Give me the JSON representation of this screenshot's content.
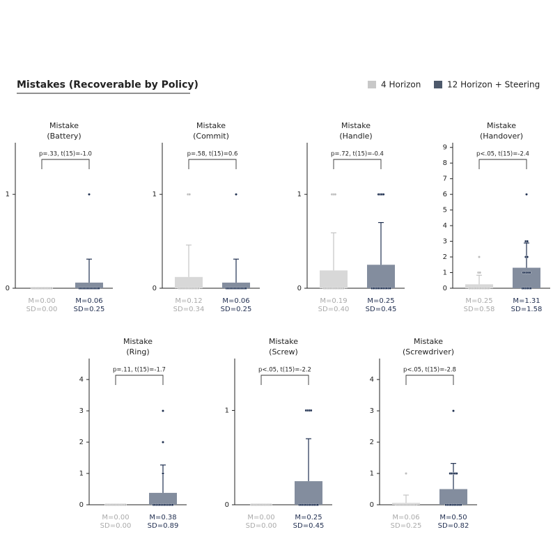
{
  "title": "Mistakes (Recoverable by Policy)",
  "legend": [
    {
      "name": "4 Horizon",
      "color": "#c8c8c8"
    },
    {
      "name": "12 Horizon + Steering",
      "color": "#4d596b"
    }
  ],
  "chart_data": [
    {
      "type": "bar",
      "title": "Mistake",
      "subtitle": "(Battery)",
      "annotation": "p=.33, t(15)=-1.0",
      "values": [
        0,
        0.06
      ],
      "errors": [
        0,
        0.25
      ],
      "value_labels": [
        "M=0.00",
        "M=0.06"
      ],
      "error_labels": [
        "SD=0.00",
        "SD=0.25"
      ],
      "points": [
        [
          0,
          0,
          0,
          0,
          0,
          0,
          0,
          0,
          0,
          0,
          0,
          0,
          0,
          0,
          0,
          0
        ],
        [
          1,
          0,
          0,
          0,
          0,
          0,
          0,
          0,
          0,
          0,
          0,
          0,
          0,
          0,
          0,
          0
        ]
      ],
      "ylim": [
        0,
        1.55
      ],
      "yticks": [
        0,
        1
      ]
    },
    {
      "type": "bar",
      "title": "Mistake",
      "subtitle": "(Commit)",
      "annotation": "p=.58, t(15)=0.6",
      "values": [
        0.12,
        0.06
      ],
      "errors": [
        0.34,
        0.25
      ],
      "value_labels": [
        "M=0.12",
        "M=0.06"
      ],
      "error_labels": [
        "SD=0.34",
        "SD=0.25"
      ],
      "points": [
        [
          1,
          1,
          0,
          0,
          0,
          0,
          0,
          0,
          0,
          0,
          0,
          0,
          0,
          0,
          0,
          0
        ],
        [
          1,
          0,
          0,
          0,
          0,
          0,
          0,
          0,
          0,
          0,
          0,
          0,
          0,
          0,
          0,
          0
        ]
      ],
      "ylim": [
        0,
        1.55
      ],
      "yticks": [
        0,
        1
      ]
    },
    {
      "type": "bar",
      "title": "Mistake",
      "subtitle": "(Handle)",
      "annotation": "p=.72, t(15)=-0.4",
      "values": [
        0.19,
        0.25
      ],
      "errors": [
        0.4,
        0.45
      ],
      "value_labels": [
        "M=0.19",
        "M=0.25"
      ],
      "error_labels": [
        "SD=0.40",
        "SD=0.45"
      ],
      "points": [
        [
          1,
          1,
          1,
          0,
          0,
          0,
          0,
          0,
          0,
          0,
          0,
          0,
          0,
          0,
          0,
          0
        ],
        [
          1,
          1,
          1,
          1,
          0,
          0,
          0,
          0,
          0,
          0,
          0,
          0,
          0,
          0,
          0,
          0
        ]
      ],
      "ylim": [
        0,
        1.55
      ],
      "yticks": [
        0,
        1
      ]
    },
    {
      "type": "bar",
      "title": "Mistake",
      "subtitle": "(Handover)",
      "annotation": "p<.05, t(15)=-2.4",
      "values": [
        0.25,
        1.31
      ],
      "errors": [
        0.58,
        1.58
      ],
      "value_labels": [
        "M=0.25",
        "M=1.31"
      ],
      "error_labels": [
        "SD=0.58",
        "SD=1.58"
      ],
      "points": [
        [
          2,
          1,
          1,
          0,
          0,
          0,
          0,
          0,
          0,
          0,
          0,
          0,
          0,
          0,
          0,
          0
        ],
        [
          6,
          3,
          3,
          2,
          2,
          1,
          1,
          1,
          1,
          1,
          0,
          0,
          0,
          0,
          0,
          0
        ]
      ],
      "ylim": [
        0,
        9.3
      ],
      "yticks": [
        0,
        1,
        2,
        3,
        4,
        5,
        6,
        7,
        8,
        9
      ]
    },
    {
      "type": "bar",
      "title": "Mistake",
      "subtitle": "(Ring)",
      "annotation": "p=.11, t(15)=-1.7",
      "values": [
        0,
        0.38
      ],
      "errors": [
        0,
        0.89
      ],
      "value_labels": [
        "M=0.00",
        "M=0.38"
      ],
      "error_labels": [
        "SD=0.00",
        "SD=0.89"
      ],
      "points": [
        [
          0,
          0,
          0,
          0,
          0,
          0,
          0,
          0,
          0,
          0,
          0,
          0,
          0,
          0,
          0,
          0
        ],
        [
          3,
          2,
          1,
          0,
          0,
          0,
          0,
          0,
          0,
          0,
          0,
          0,
          0,
          0,
          0,
          0
        ]
      ],
      "ylim": [
        0,
        4.67
      ],
      "yticks": [
        0,
        1,
        2,
        3,
        4
      ]
    },
    {
      "type": "bar",
      "title": "Mistake",
      "subtitle": "(Screw)",
      "annotation": "p<.05, t(15)=-2.2",
      "values": [
        0,
        0.25
      ],
      "errors": [
        0,
        0.45
      ],
      "value_labels": [
        "M=0.00",
        "M=0.25"
      ],
      "error_labels": [
        "SD=0.00",
        "SD=0.45"
      ],
      "points": [
        [
          0,
          0,
          0,
          0,
          0,
          0,
          0,
          0,
          0,
          0,
          0,
          0,
          0,
          0,
          0,
          0
        ],
        [
          1,
          1,
          1,
          1,
          0,
          0,
          0,
          0,
          0,
          0,
          0,
          0,
          0,
          0,
          0,
          0
        ]
      ],
      "ylim": [
        0,
        1.55
      ],
      "yticks": [
        0,
        1
      ]
    },
    {
      "type": "bar",
      "title": "Mistake",
      "subtitle": "(Screwdriver)",
      "annotation": "p<.05, t(15)=-2.8",
      "values": [
        0.06,
        0.5
      ],
      "errors": [
        0.25,
        0.82
      ],
      "value_labels": [
        "M=0.06",
        "M=0.50"
      ],
      "error_labels": [
        "SD=0.25",
        "SD=0.82"
      ],
      "points": [
        [
          1,
          0,
          0,
          0,
          0,
          0,
          0,
          0,
          0,
          0,
          0,
          0,
          0,
          0,
          0,
          0
        ],
        [
          3,
          1,
          1,
          1,
          1,
          1,
          0,
          0,
          0,
          0,
          0,
          0,
          0,
          0,
          0,
          0
        ]
      ],
      "ylim": [
        0,
        4.67
      ],
      "yticks": [
        0,
        1,
        2,
        3,
        4
      ]
    }
  ]
}
